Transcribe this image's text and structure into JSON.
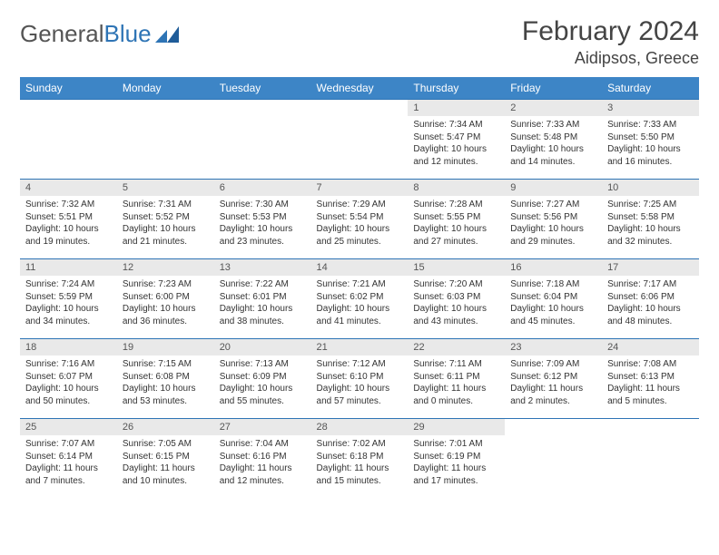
{
  "brand": {
    "part1": "General",
    "part2": "Blue"
  },
  "title": {
    "month": "February 2024",
    "location": "Aidipsos, Greece"
  },
  "colors": {
    "header_bg": "#3d85c6",
    "header_text": "#ffffff",
    "daynum_bg": "#e9e9e9",
    "border": "#2e74b5",
    "text": "#333333"
  },
  "weekdays": [
    "Sunday",
    "Monday",
    "Tuesday",
    "Wednesday",
    "Thursday",
    "Friday",
    "Saturday"
  ],
  "weeks": [
    [
      {
        "empty": true
      },
      {
        "empty": true
      },
      {
        "empty": true
      },
      {
        "empty": true
      },
      {
        "n": "1",
        "sunrise": "Sunrise: 7:34 AM",
        "sunset": "Sunset: 5:47 PM",
        "day1": "Daylight: 10 hours",
        "day2": "and 12 minutes."
      },
      {
        "n": "2",
        "sunrise": "Sunrise: 7:33 AM",
        "sunset": "Sunset: 5:48 PM",
        "day1": "Daylight: 10 hours",
        "day2": "and 14 minutes."
      },
      {
        "n": "3",
        "sunrise": "Sunrise: 7:33 AM",
        "sunset": "Sunset: 5:50 PM",
        "day1": "Daylight: 10 hours",
        "day2": "and 16 minutes."
      }
    ],
    [
      {
        "n": "4",
        "sunrise": "Sunrise: 7:32 AM",
        "sunset": "Sunset: 5:51 PM",
        "day1": "Daylight: 10 hours",
        "day2": "and 19 minutes."
      },
      {
        "n": "5",
        "sunrise": "Sunrise: 7:31 AM",
        "sunset": "Sunset: 5:52 PM",
        "day1": "Daylight: 10 hours",
        "day2": "and 21 minutes."
      },
      {
        "n": "6",
        "sunrise": "Sunrise: 7:30 AM",
        "sunset": "Sunset: 5:53 PM",
        "day1": "Daylight: 10 hours",
        "day2": "and 23 minutes."
      },
      {
        "n": "7",
        "sunrise": "Sunrise: 7:29 AM",
        "sunset": "Sunset: 5:54 PM",
        "day1": "Daylight: 10 hours",
        "day2": "and 25 minutes."
      },
      {
        "n": "8",
        "sunrise": "Sunrise: 7:28 AM",
        "sunset": "Sunset: 5:55 PM",
        "day1": "Daylight: 10 hours",
        "day2": "and 27 minutes."
      },
      {
        "n": "9",
        "sunrise": "Sunrise: 7:27 AM",
        "sunset": "Sunset: 5:56 PM",
        "day1": "Daylight: 10 hours",
        "day2": "and 29 minutes."
      },
      {
        "n": "10",
        "sunrise": "Sunrise: 7:25 AM",
        "sunset": "Sunset: 5:58 PM",
        "day1": "Daylight: 10 hours",
        "day2": "and 32 minutes."
      }
    ],
    [
      {
        "n": "11",
        "sunrise": "Sunrise: 7:24 AM",
        "sunset": "Sunset: 5:59 PM",
        "day1": "Daylight: 10 hours",
        "day2": "and 34 minutes."
      },
      {
        "n": "12",
        "sunrise": "Sunrise: 7:23 AM",
        "sunset": "Sunset: 6:00 PM",
        "day1": "Daylight: 10 hours",
        "day2": "and 36 minutes."
      },
      {
        "n": "13",
        "sunrise": "Sunrise: 7:22 AM",
        "sunset": "Sunset: 6:01 PM",
        "day1": "Daylight: 10 hours",
        "day2": "and 38 minutes."
      },
      {
        "n": "14",
        "sunrise": "Sunrise: 7:21 AM",
        "sunset": "Sunset: 6:02 PM",
        "day1": "Daylight: 10 hours",
        "day2": "and 41 minutes."
      },
      {
        "n": "15",
        "sunrise": "Sunrise: 7:20 AM",
        "sunset": "Sunset: 6:03 PM",
        "day1": "Daylight: 10 hours",
        "day2": "and 43 minutes."
      },
      {
        "n": "16",
        "sunrise": "Sunrise: 7:18 AM",
        "sunset": "Sunset: 6:04 PM",
        "day1": "Daylight: 10 hours",
        "day2": "and 45 minutes."
      },
      {
        "n": "17",
        "sunrise": "Sunrise: 7:17 AM",
        "sunset": "Sunset: 6:06 PM",
        "day1": "Daylight: 10 hours",
        "day2": "and 48 minutes."
      }
    ],
    [
      {
        "n": "18",
        "sunrise": "Sunrise: 7:16 AM",
        "sunset": "Sunset: 6:07 PM",
        "day1": "Daylight: 10 hours",
        "day2": "and 50 minutes."
      },
      {
        "n": "19",
        "sunrise": "Sunrise: 7:15 AM",
        "sunset": "Sunset: 6:08 PM",
        "day1": "Daylight: 10 hours",
        "day2": "and 53 minutes."
      },
      {
        "n": "20",
        "sunrise": "Sunrise: 7:13 AM",
        "sunset": "Sunset: 6:09 PM",
        "day1": "Daylight: 10 hours",
        "day2": "and 55 minutes."
      },
      {
        "n": "21",
        "sunrise": "Sunrise: 7:12 AM",
        "sunset": "Sunset: 6:10 PM",
        "day1": "Daylight: 10 hours",
        "day2": "and 57 minutes."
      },
      {
        "n": "22",
        "sunrise": "Sunrise: 7:11 AM",
        "sunset": "Sunset: 6:11 PM",
        "day1": "Daylight: 11 hours",
        "day2": "and 0 minutes."
      },
      {
        "n": "23",
        "sunrise": "Sunrise: 7:09 AM",
        "sunset": "Sunset: 6:12 PM",
        "day1": "Daylight: 11 hours",
        "day2": "and 2 minutes."
      },
      {
        "n": "24",
        "sunrise": "Sunrise: 7:08 AM",
        "sunset": "Sunset: 6:13 PM",
        "day1": "Daylight: 11 hours",
        "day2": "and 5 minutes."
      }
    ],
    [
      {
        "n": "25",
        "sunrise": "Sunrise: 7:07 AM",
        "sunset": "Sunset: 6:14 PM",
        "day1": "Daylight: 11 hours",
        "day2": "and 7 minutes."
      },
      {
        "n": "26",
        "sunrise": "Sunrise: 7:05 AM",
        "sunset": "Sunset: 6:15 PM",
        "day1": "Daylight: 11 hours",
        "day2": "and 10 minutes."
      },
      {
        "n": "27",
        "sunrise": "Sunrise: 7:04 AM",
        "sunset": "Sunset: 6:16 PM",
        "day1": "Daylight: 11 hours",
        "day2": "and 12 minutes."
      },
      {
        "n": "28",
        "sunrise": "Sunrise: 7:02 AM",
        "sunset": "Sunset: 6:18 PM",
        "day1": "Daylight: 11 hours",
        "day2": "and 15 minutes."
      },
      {
        "n": "29",
        "sunrise": "Sunrise: 7:01 AM",
        "sunset": "Sunset: 6:19 PM",
        "day1": "Daylight: 11 hours",
        "day2": "and 17 minutes."
      },
      {
        "empty": true
      },
      {
        "empty": true
      }
    ]
  ]
}
